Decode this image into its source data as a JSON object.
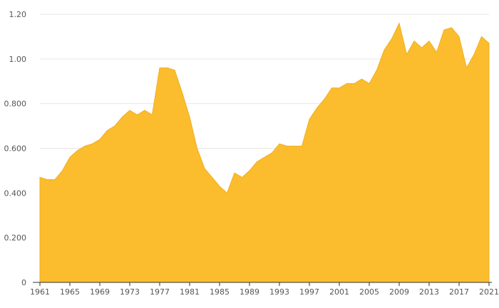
{
  "chart_data": {
    "type": "area",
    "title": "",
    "xlabel": "",
    "ylabel": "",
    "fill_color": "#fbbc2e",
    "stroke_color": "#f0b020",
    "ylim": [
      0,
      1.2
    ],
    "xlim": [
      1961,
      2021
    ],
    "grid": true,
    "legend": "none",
    "y_ticks": [
      {
        "value": 0,
        "label": "0"
      },
      {
        "value": 0.2,
        "label": "0.200"
      },
      {
        "value": 0.4,
        "label": "0.400"
      },
      {
        "value": 0.6,
        "label": "0.600"
      },
      {
        "value": 0.8,
        "label": "0.800"
      },
      {
        "value": 1.0,
        "label": "1.00"
      },
      {
        "value": 1.2,
        "label": "1.20"
      }
    ],
    "x_ticks": [
      {
        "value": 1961,
        "label": "1961"
      },
      {
        "value": 1965,
        "label": "1965"
      },
      {
        "value": 1969,
        "label": "1969"
      },
      {
        "value": 1973,
        "label": "1973"
      },
      {
        "value": 1977,
        "label": "1977"
      },
      {
        "value": 1981,
        "label": "1981"
      },
      {
        "value": 1985,
        "label": "1985"
      },
      {
        "value": 1989,
        "label": "1989"
      },
      {
        "value": 1993,
        "label": "1993"
      },
      {
        "value": 1997,
        "label": "1997"
      },
      {
        "value": 2001,
        "label": "2001"
      },
      {
        "value": 2005,
        "label": "2005"
      },
      {
        "value": 2009,
        "label": "2009"
      },
      {
        "value": 2013,
        "label": "2013"
      },
      {
        "value": 2017,
        "label": "2017"
      },
      {
        "value": 2021,
        "label": "2021"
      }
    ],
    "x": [
      1961,
      1962,
      1963,
      1964,
      1965,
      1966,
      1967,
      1968,
      1969,
      1970,
      1971,
      1972,
      1973,
      1974,
      1975,
      1976,
      1977,
      1978,
      1979,
      1980,
      1981,
      1982,
      1983,
      1984,
      1985,
      1986,
      1987,
      1988,
      1989,
      1990,
      1991,
      1992,
      1993,
      1994,
      1995,
      1996,
      1997,
      1998,
      1999,
      2000,
      2001,
      2002,
      2003,
      2004,
      2005,
      2006,
      2007,
      2008,
      2009,
      2010,
      2011,
      2012,
      2013,
      2014,
      2015,
      2016,
      2017,
      2018,
      2019,
      2020,
      2021
    ],
    "values": [
      0.47,
      0.46,
      0.46,
      0.5,
      0.56,
      0.59,
      0.61,
      0.62,
      0.64,
      0.68,
      0.7,
      0.74,
      0.77,
      0.75,
      0.77,
      0.75,
      0.96,
      0.96,
      0.95,
      0.85,
      0.74,
      0.6,
      0.51,
      0.47,
      0.43,
      0.4,
      0.49,
      0.47,
      0.5,
      0.54,
      0.56,
      0.58,
      0.62,
      0.61,
      0.61,
      0.61,
      0.73,
      0.78,
      0.82,
      0.87,
      0.87,
      0.89,
      0.89,
      0.91,
      0.89,
      0.95,
      1.04,
      1.09,
      1.16,
      1.02,
      1.08,
      1.05,
      1.08,
      1.03,
      1.13,
      1.14,
      1.1,
      0.96,
      1.02,
      1.1,
      1.07
    ]
  }
}
